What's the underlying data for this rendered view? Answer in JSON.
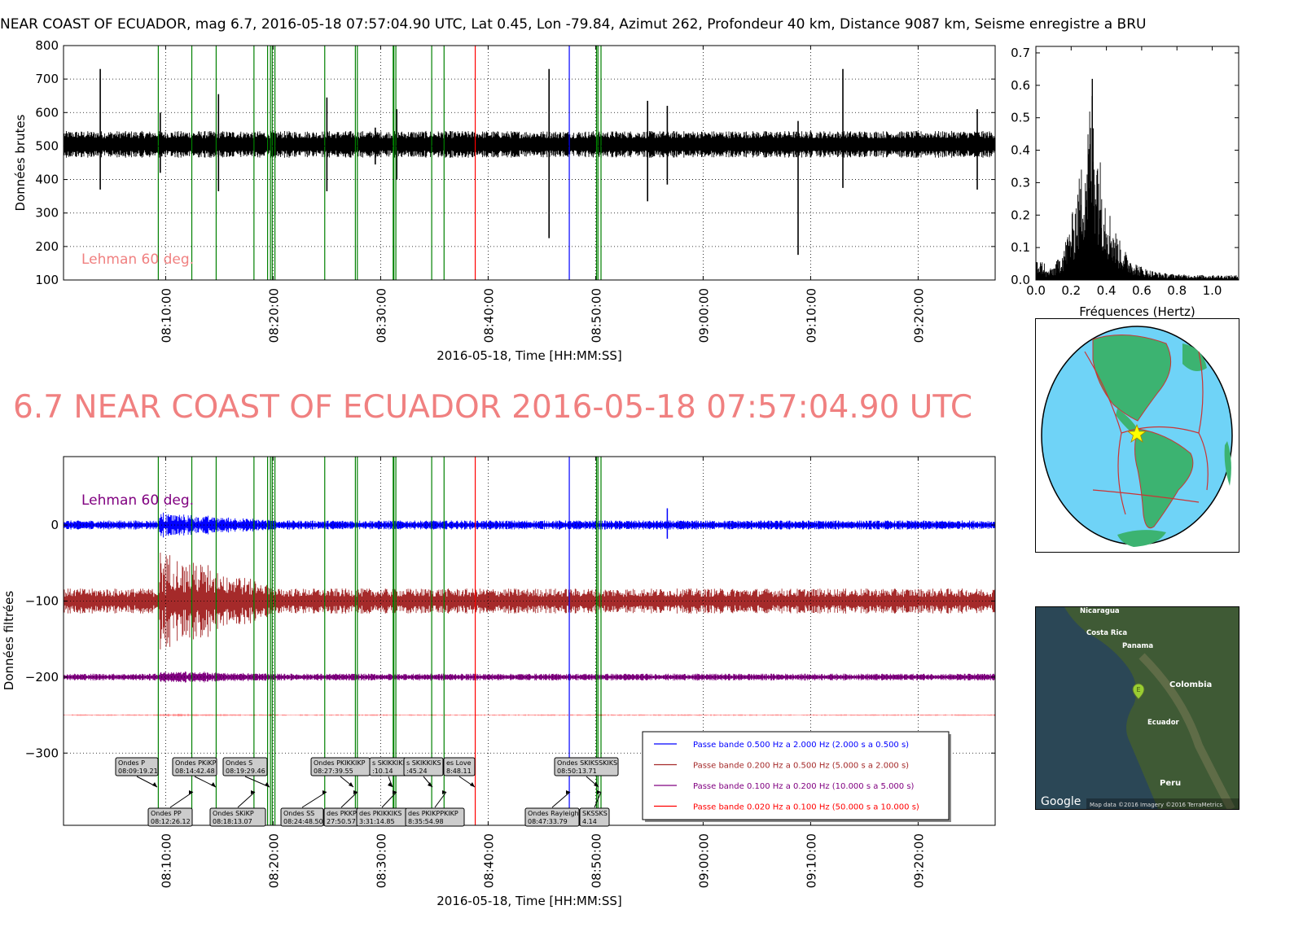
{
  "header": {
    "text": "NEAR COAST OF ECUADOR, mag 6.7, 2016-05-18 07:57:04.90 UTC, Lat 0.45, Lon -79.84, Azimut 262, Profondeur 40 km, Distance  9087 km, Seisme enregistre a BRU"
  },
  "big_title": "6.7 NEAR COAST OF ECUADOR 2016-05-18 07:57:04.90 UTC",
  "colors": {
    "raw_trace": "#000000",
    "phase_line": "#008000",
    "marker_red": "#ff0000",
    "marker_blue": "#0000ff",
    "annotation": "#f08080",
    "purple": "#800080",
    "band1": "#0000ff",
    "band2": "#a52a2a",
    "band3": "#800080",
    "band4": "#ff0000"
  },
  "chart_data": [
    {
      "id": "raw",
      "type": "line",
      "xlabel": "2016-05-18, Time [HH:MM:SS]",
      "ylabel": "Données brutes",
      "ylim": [
        100,
        800
      ],
      "yticks": [
        "100",
        "200",
        "300",
        "400",
        "500",
        "600",
        "700",
        "800"
      ],
      "xticks": [
        "08:10:00",
        "08:20:00",
        "08:30:00",
        "08:40:00",
        "08:50:00",
        "09:00:00",
        "09:10:00",
        "09:20:00"
      ],
      "grid": true,
      "annotation": "Lehman 60 deg.",
      "baseline": 505,
      "spikes": [
        {
          "t": "08:03:55",
          "up": 730,
          "down": 370
        },
        {
          "t": "08:09:30",
          "up": 600,
          "down": 420
        },
        {
          "t": "08:14:55",
          "up": 655,
          "down": 365
        },
        {
          "t": "08:25:00",
          "up": 645,
          "down": 365
        },
        {
          "t": "08:29:30",
          "up": 555,
          "down": 445
        },
        {
          "t": "08:31:30",
          "up": 610,
          "down": 400
        },
        {
          "t": "08:45:40",
          "up": 730,
          "down": 225
        },
        {
          "t": "08:54:50",
          "up": 635,
          "down": 335
        },
        {
          "t": "08:56:40",
          "up": 620,
          "down": 385
        },
        {
          "t": "09:08:50",
          "up": 575,
          "down": 175
        },
        {
          "t": "09:13:00",
          "up": 730,
          "down": 375
        },
        {
          "t": "09:25:30",
          "up": 610,
          "down": 370
        }
      ],
      "phase_lines": [
        "08:09:19",
        "08:12:26",
        "08:14:42",
        "08:18:13",
        "08:19:29",
        "08:19:45",
        "08:19:55",
        "08:20:10",
        "08:24:48",
        "08:27:39",
        "08:27:50",
        "08:31:10",
        "08:31:14",
        "08:31:25",
        "08:34:45",
        "08:35:54",
        "08:50:05",
        "08:50:13",
        "08:50:30"
      ],
      "red_line": "08:38:48",
      "blue_line": "08:47:33"
    },
    {
      "id": "spectrum",
      "type": "line",
      "xlabel": "Fréquences (Hertz)",
      "xlim": [
        0.0,
        1.15
      ],
      "ylim": [
        0.0,
        0.72
      ],
      "xticks": [
        "0.0",
        "0.2",
        "0.4",
        "0.6",
        "0.8",
        "1.0"
      ],
      "yticks": [
        "0.0",
        "0.1",
        "0.2",
        "0.3",
        "0.4",
        "0.5",
        "0.6",
        "0.7"
      ],
      "peak_frequency": 0.32,
      "peak_amplitude": 0.62
    },
    {
      "id": "filtered",
      "type": "line",
      "xlabel": "2016-05-18, Time [HH:MM:SS]",
      "ylabel": "Données filtrées",
      "ylim": [
        -395,
        90
      ],
      "yticks": [
        "0",
        "−100",
        "−200",
        "−300"
      ],
      "xticks": [
        "08:10:00",
        "08:20:00",
        "08:30:00",
        "08:40:00",
        "08:50:00",
        "09:00:00",
        "09:10:00",
        "09:20:00"
      ],
      "grid": true,
      "annotation": "Lehman 60 deg.",
      "series": [
        {
          "name": "Passe bande 0.500 Hz a 2.000 Hz (2.000 s a 0.500 s)",
          "offset": 0,
          "amplitude": 4
        },
        {
          "name": "Passe bande 0.200 Hz a 0.500 Hz (5.000 s a 2.000 s)",
          "offset": -100,
          "amplitude": 11
        },
        {
          "name": "Passe bande 0.100 Hz a 0.200 Hz (10.000 s a 5.000 s)",
          "offset": -200,
          "amplitude": 3
        },
        {
          "name": "Passe bande 0.020 Hz a 0.100 Hz (50.000 s a 10.000 s)",
          "offset": -250,
          "amplitude": 0.6
        }
      ],
      "phase_labels": [
        {
          "name": "Ondes P",
          "time": "08:09:19.21",
          "row": "top"
        },
        {
          "name": "Ondes PP",
          "time": "08:12:26.12",
          "row": "bottom"
        },
        {
          "name": "Ondes PKiKP",
          "time": "08:14:42.48",
          "row": "top"
        },
        {
          "name": "Ondes SKiKP",
          "time": "08:18:13.07",
          "row": "bottom"
        },
        {
          "name": "Ondes S",
          "time": "08:19:29.46",
          "row": "top"
        },
        {
          "name": "Ondes SS",
          "time": "08:24:48.50",
          "row": "bottom"
        },
        {
          "name": "Ondes PKIKKIKP",
          "time": "08:27:39.55",
          "row": "top"
        },
        {
          "name": "des PKKP",
          "time": "27:50.57",
          "row": "bottom"
        },
        {
          "name": "s SKIKKIKP",
          "time": ":10.14",
          "row": "top"
        },
        {
          "name": "des PKIKKIKS",
          "time": "3:31:14.85",
          "row": "bottom"
        },
        {
          "name": "s SKIKKIKS",
          "time": ":45.24",
          "row": "top"
        },
        {
          "name": "es Love",
          "time": "8:48.11",
          "row": "top"
        },
        {
          "name": "des PKIKPPKIKP",
          "time": "8:35:54.98",
          "row": "bottom"
        },
        {
          "name": "Ondes Rayleigh",
          "time": "08:47:33.79",
          "row": "bottom"
        },
        {
          "name": "Ondes SKIKSSKIKS",
          "time": "08:50:13.71",
          "row": "top"
        },
        {
          "name": "SKSSKS",
          "time": "4.14",
          "row": "bottom"
        }
      ]
    }
  ],
  "local_map": {
    "labels": [
      "Nicaragua",
      "Costa Rica",
      "Panama",
      "Colombia",
      "Ecuador",
      "Peru"
    ],
    "marker": "E",
    "logo": "Google",
    "credits": "Map data ©2016  Imagery ©2016 TerraMetrics"
  }
}
